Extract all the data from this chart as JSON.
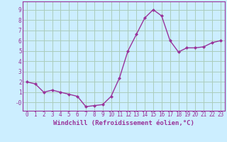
{
  "x": [
    0,
    1,
    2,
    3,
    4,
    5,
    6,
    7,
    8,
    9,
    10,
    11,
    12,
    13,
    14,
    15,
    16,
    17,
    18,
    19,
    20,
    21,
    22,
    23
  ],
  "y": [
    2.0,
    1.8,
    1.0,
    1.2,
    1.0,
    0.8,
    0.6,
    -0.4,
    -0.3,
    -0.2,
    0.6,
    2.4,
    5.0,
    6.6,
    8.2,
    9.0,
    8.4,
    6.0,
    4.9,
    5.3,
    5.3,
    5.4,
    5.8,
    6.0
  ],
  "line_color": "#993399",
  "marker": "D",
  "marker_size": 2,
  "linewidth": 1.0,
  "bg_color": "#cceeff",
  "grid_color": "#aaccbb",
  "xlabel": "Windchill (Refroidissement éolien,°C)",
  "ylabel": "",
  "xlim": [
    -0.5,
    23.5
  ],
  "ylim": [
    -0.8,
    9.8
  ],
  "yticks": [
    0,
    1,
    2,
    3,
    4,
    5,
    6,
    7,
    8,
    9
  ],
  "xticks": [
    0,
    1,
    2,
    3,
    4,
    5,
    6,
    7,
    8,
    9,
    10,
    11,
    12,
    13,
    14,
    15,
    16,
    17,
    18,
    19,
    20,
    21,
    22,
    23
  ],
  "xtick_labels": [
    "0",
    "1",
    "2",
    "3",
    "4",
    "5",
    "6",
    "7",
    "8",
    "9",
    "10",
    "11",
    "12",
    "13",
    "14",
    "15",
    "16",
    "17",
    "18",
    "19",
    "20",
    "21",
    "22",
    "23"
  ],
  "ytick_labels": [
    "-0",
    "1",
    "2",
    "3",
    "4",
    "5",
    "6",
    "7",
    "8",
    "9"
  ],
  "font_color": "#993399",
  "tick_fontsize": 5.5,
  "xlabel_fontsize": 6.5
}
